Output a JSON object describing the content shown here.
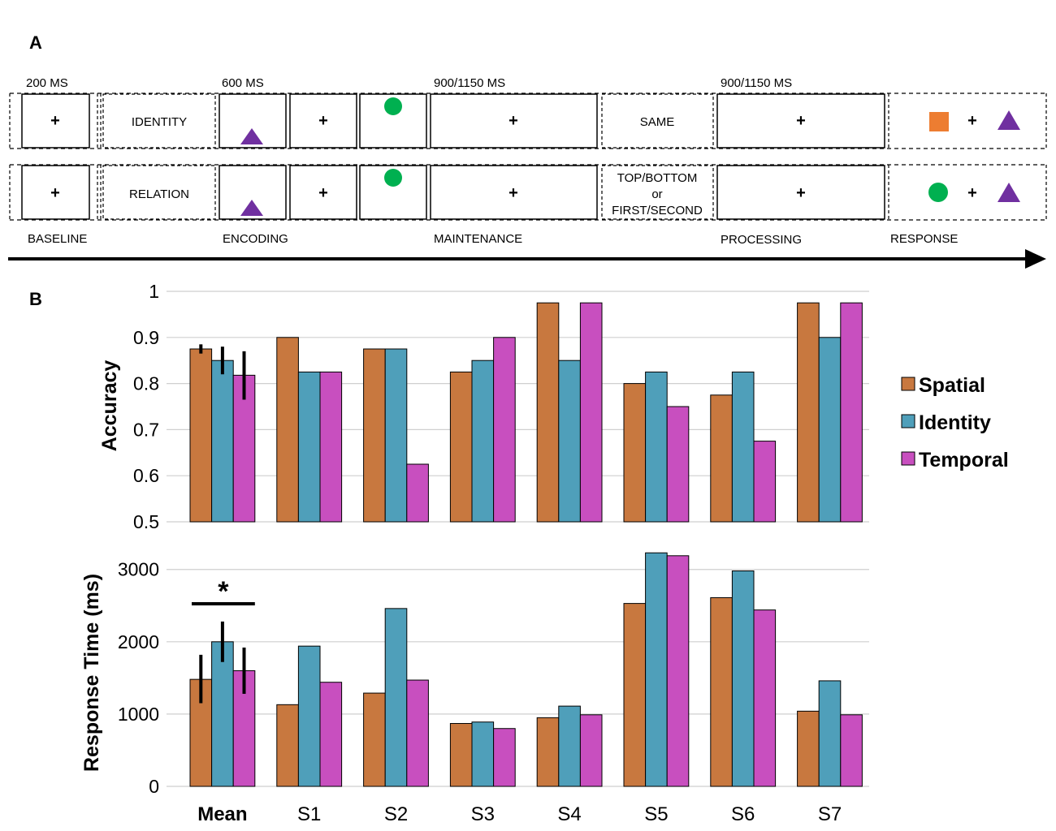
{
  "panel_a": {
    "label": "A",
    "timings": [
      "200 MS",
      "600 MS",
      "900/1150 MS",
      "900/1150 MS"
    ],
    "row1": {
      "cue": "IDENTITY",
      "probe": "SAME"
    },
    "row2": {
      "cue": "RELATION",
      "probe_lines": [
        "TOP/BOTTOM",
        "or",
        "FIRST/SECOND"
      ]
    },
    "fixation": "+",
    "phases": [
      "BASELINE",
      "ENCODING",
      "MAINTENANCE",
      "PROCESSING",
      "RESPONSE"
    ],
    "colors": {
      "triangle": "#7030a0",
      "circle": "#00b050",
      "square": "#ed7d31"
    },
    "icons": [
      "triangle-icon",
      "circle-icon",
      "square-icon",
      "arrow-icon"
    ]
  },
  "panel_b": {
    "label": "B"
  },
  "chart_data": [
    {
      "type": "bar",
      "title": "",
      "xlabel": "",
      "ylabel": "Accuracy",
      "ylim": [
        0.5,
        1
      ],
      "yticks": [
        "0.5",
        "0.6",
        "0.7",
        "0.8",
        "0.9",
        "1"
      ],
      "ytick_values": [
        0.5,
        0.6,
        0.7,
        0.8,
        0.9,
        1.0
      ],
      "grid": true,
      "categories": [
        "Mean",
        "S1",
        "S2",
        "S3",
        "S4",
        "S5",
        "S6",
        "S7"
      ],
      "series": [
        {
          "name": "Spatial",
          "color": "#c8783f",
          "values": [
            0.875,
            0.9,
            0.875,
            0.825,
            0.975,
            0.8,
            0.775,
            0.975
          ]
        },
        {
          "name": "Identity",
          "color": "#4f9fba",
          "values": [
            0.85,
            0.825,
            0.875,
            0.85,
            0.85,
            0.825,
            0.825,
            0.9
          ]
        },
        {
          "name": "Temporal",
          "color": "#c84fbf",
          "values": [
            0.818,
            0.825,
            0.625,
            0.9,
            0.975,
            0.75,
            0.675,
            0.975
          ]
        }
      ],
      "error_bars": {
        "category": "Mean",
        "Spatial": [
          0.865,
          0.885
        ],
        "Identity": [
          0.82,
          0.88
        ],
        "Temporal": [
          0.765,
          0.87
        ]
      }
    },
    {
      "type": "bar",
      "title": "",
      "xlabel": "",
      "ylabel": "Response Time (ms)",
      "ylim": [
        0,
        3300
      ],
      "yticks": [
        "0",
        "1000",
        "2000",
        "3000"
      ],
      "ytick_values": [
        0,
        1000,
        2000,
        3000
      ],
      "grid": true,
      "categories": [
        "Mean",
        "S1",
        "S2",
        "S3",
        "S4",
        "S5",
        "S6",
        "S7"
      ],
      "series": [
        {
          "name": "Spatial",
          "color": "#c8783f",
          "values": [
            1480,
            1130,
            1290,
            870,
            950,
            2530,
            2610,
            1040
          ]
        },
        {
          "name": "Identity",
          "color": "#4f9fba",
          "values": [
            2000,
            1940,
            2460,
            890,
            1110,
            3230,
            2980,
            1460
          ]
        },
        {
          "name": "Temporal",
          "color": "#c84fbf",
          "values": [
            1600,
            1440,
            1470,
            800,
            990,
            3190,
            2440,
            990
          ]
        }
      ],
      "error_bars": {
        "category": "Mean",
        "Spatial": [
          1150,
          1820
        ],
        "Identity": [
          1720,
          2280
        ],
        "Temporal": [
          1280,
          1920
        ]
      },
      "significance": "*"
    }
  ],
  "legend": [
    {
      "name": "Spatial",
      "color": "#c8783f"
    },
    {
      "name": "Identity",
      "color": "#4f9fba"
    },
    {
      "name": "Temporal",
      "color": "#c84fbf"
    }
  ]
}
